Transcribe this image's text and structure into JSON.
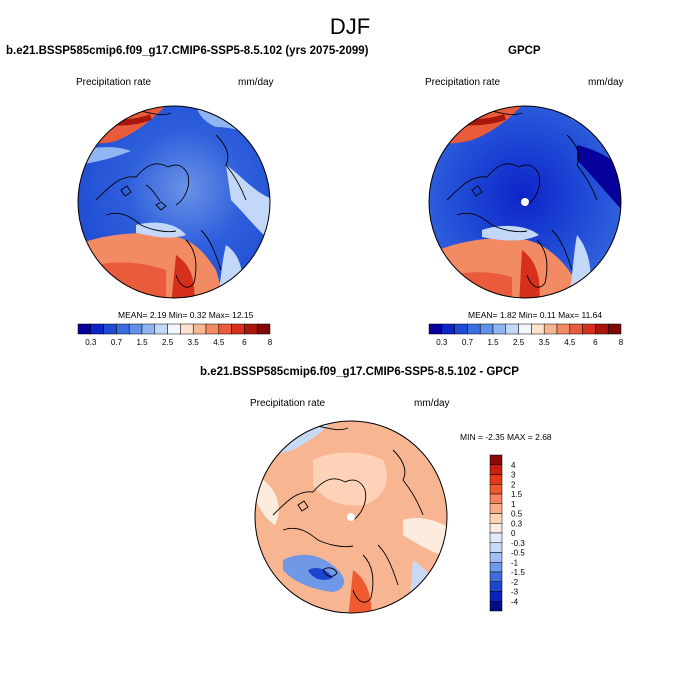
{
  "season": "DJF",
  "panels": [
    {
      "title": "b.e21.BSSP585cmip6.f09_g17.CMIP6-SSP5-8.5.102 (yrs 2075-2099)",
      "variable": "Precipitation rate",
      "units": "mm/day",
      "stats": "MEAN=  2.19  Min=   0.32  Max=  12.15"
    },
    {
      "title": "GPCP",
      "variable": "Precipitation rate",
      "units": "mm/day",
      "stats": "MEAN=  1.82  Min=   0.11  Max=  11.64"
    },
    {
      "title": "b.e21.BSSP585cmip6.f09_g17.CMIP6-SSP5-8.5.102 - GPCP",
      "variable": "Precipitation rate",
      "units": "mm/day",
      "stats": "MIN = -2.35 MAX =  2.68"
    }
  ],
  "colorbar_abs": {
    "colors": [
      "#08009a",
      "#0d24c8",
      "#1f4ad6",
      "#3a6de0",
      "#6090ea",
      "#90b5f2",
      "#c3d8f8",
      "#f3f7ff",
      "#fde3d0",
      "#f8b592",
      "#f28b63",
      "#e95b3a",
      "#d6301c",
      "#a8170c",
      "#7d0a05"
    ],
    "tick_labels": [
      "0.3",
      "0.7",
      "1.5",
      "2.5",
      "3.5",
      "4.5",
      "6",
      "8"
    ]
  },
  "colorbar_diff": {
    "colors": [
      "#8a0a05",
      "#c81f10",
      "#e43a1a",
      "#f05a30",
      "#f78458",
      "#fbab85",
      "#fdd2b8",
      "#fdebde",
      "#e3ecfb",
      "#c8d9f6",
      "#9fbdf0",
      "#6f98e6",
      "#3f6edb",
      "#1d45cf",
      "#0a22b8",
      "#000d8a"
    ],
    "tick_labels": [
      "4",
      "3",
      "2",
      "1.5",
      "1",
      "0.5",
      "0.3",
      "0",
      "-0.3",
      "-0.5",
      "-1",
      "-1.5",
      "-2",
      "-3",
      "-4"
    ]
  }
}
